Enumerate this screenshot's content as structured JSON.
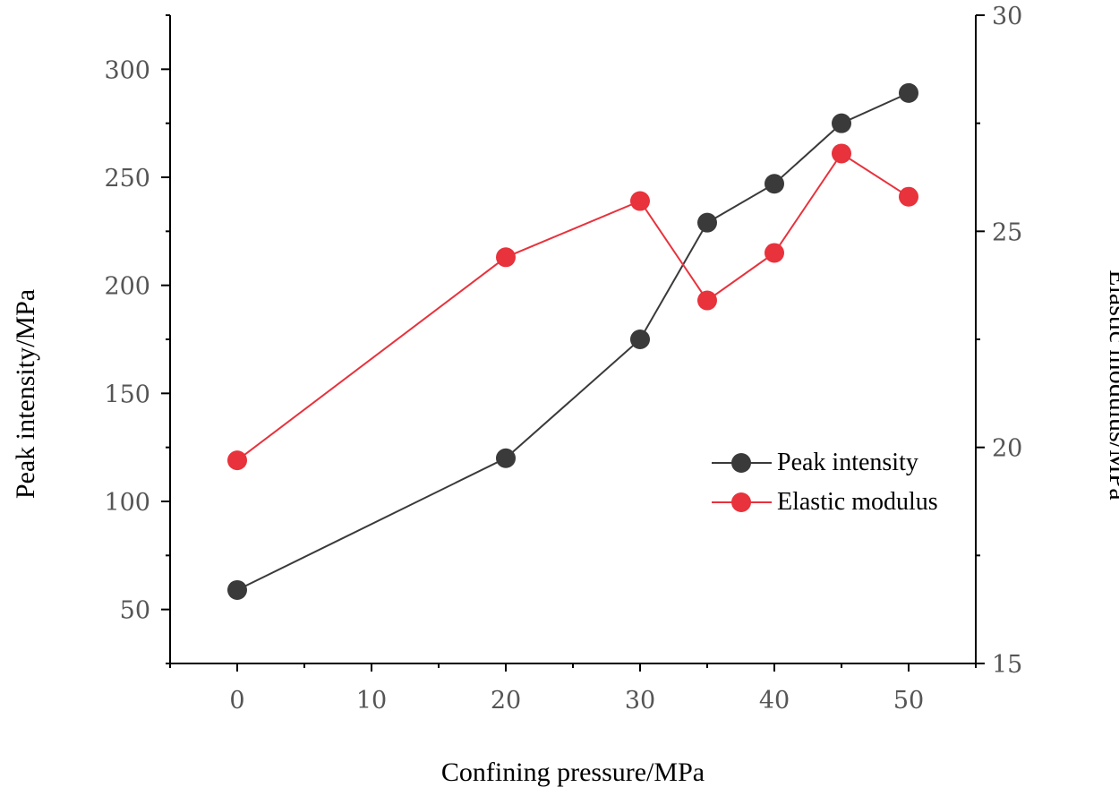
{
  "chart_data": {
    "type": "line",
    "title": "",
    "xlabel": "Confining pressure/MPa",
    "ylabel": "Peak intensity/MPa",
    "y2label": "Elastic modulus/MPa",
    "xlim": [
      -5,
      55
    ],
    "ylim": [
      25,
      325
    ],
    "y2lim": [
      15,
      30
    ],
    "xticks": [
      0,
      10,
      20,
      30,
      40,
      50
    ],
    "yticks": [
      50,
      100,
      150,
      200,
      250,
      300
    ],
    "y2ticks": [
      15,
      20,
      25,
      30
    ],
    "legend_position": "center-right",
    "series": [
      {
        "name": "Peak intensity",
        "axis": "left",
        "color": "#3a3a3a",
        "x": [
          0,
          20,
          30,
          35,
          40,
          45,
          50
        ],
        "values": [
          59,
          120,
          175,
          229,
          247,
          275,
          289
        ]
      },
      {
        "name": "Elastic modulus",
        "axis": "right",
        "color": "#e8323c",
        "x": [
          0,
          20,
          30,
          35,
          40,
          45,
          50
        ],
        "values": [
          19.7,
          24.4,
          25.7,
          23.4,
          24.5,
          26.8,
          25.8
        ]
      }
    ]
  }
}
